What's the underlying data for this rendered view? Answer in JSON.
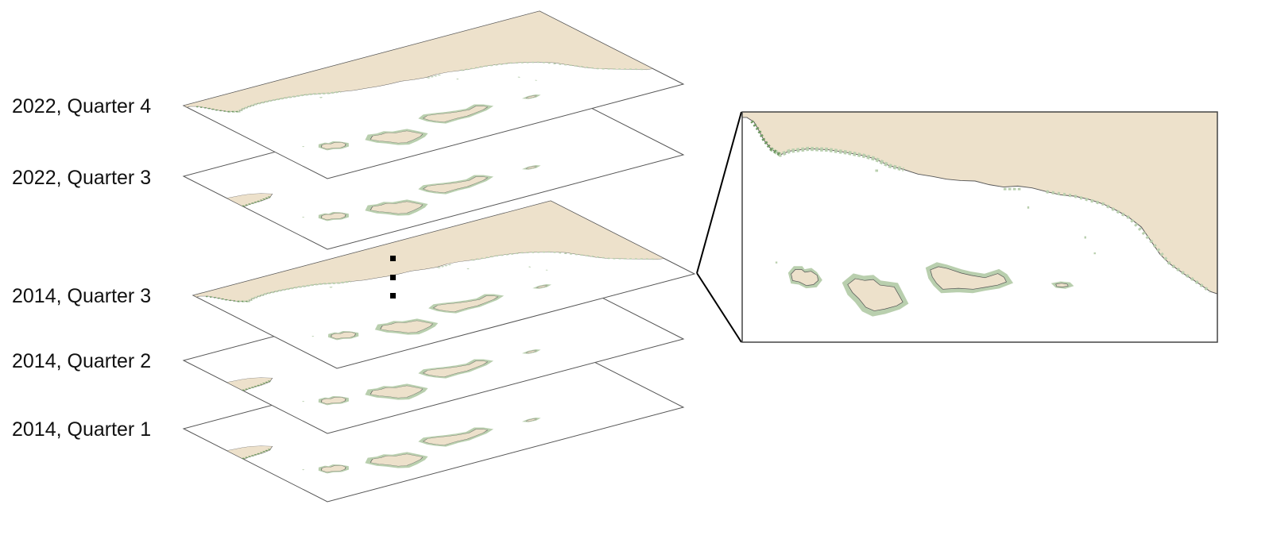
{
  "layers": [
    {
      "label": "2022, Quarter 4"
    },
    {
      "label": "2022, Quarter 3"
    },
    {
      "label": "2014, Quarter 3"
    },
    {
      "label": "2014, Quarter 2"
    },
    {
      "label": "2014, Quarter 1"
    }
  ],
  "colors": {
    "land": "#ede1cb",
    "coast_line": "#555555",
    "kelp_light": "#b9cfae",
    "kelp_dark": "#6f9a62",
    "frame": "#444444",
    "connector": "#000000",
    "ellipsis_dots": "#000000"
  },
  "icons": {
    "ellipsis": "vertical-ellipsis-icon"
  }
}
